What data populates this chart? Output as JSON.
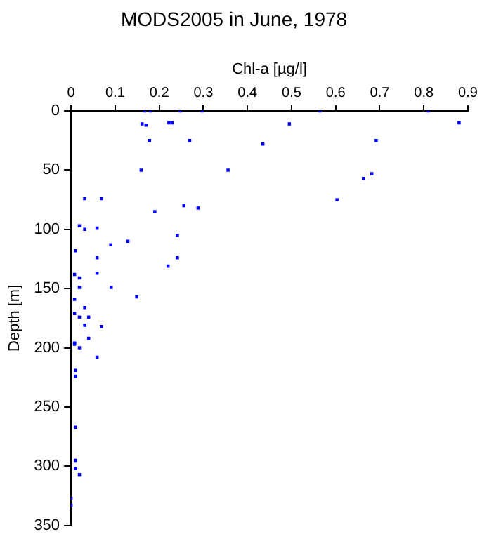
{
  "chart_data": {
    "type": "scatter",
    "title": "MODS2005 in June, 1978",
    "xlabel": "Chl-a [µg/l]",
    "ylabel": "Depth [m]",
    "xlim": [
      0,
      0.9
    ],
    "xticks": [
      0,
      0.1,
      0.2,
      0.3,
      0.4,
      0.5,
      0.6,
      0.7,
      0.8,
      0.9
    ],
    "ylim": [
      350,
      0
    ],
    "yticks": [
      0,
      50,
      100,
      150,
      200,
      250,
      300,
      350
    ],
    "grid": false,
    "legend": false,
    "marker": "square",
    "series": [
      {
        "color": "#0000ff",
        "x": [
          0.167,
          0.18,
          0.248,
          0.297,
          0.564,
          0.81,
          0.161,
          0.17,
          0.222,
          0.229,
          0.495,
          0.88,
          0.178,
          0.269,
          0.435,
          0.692,
          0.159,
          0.356,
          0.663,
          0.682,
          0.031,
          0.069,
          0.603,
          0.256,
          0.288,
          0.19,
          0.019,
          0.031,
          0.059,
          0.241,
          0.129,
          0.09,
          0.01,
          0.059,
          0.241,
          0.22,
          0.008,
          0.059,
          0.019,
          0.019,
          0.091,
          0.149,
          0.008,
          0.031,
          0.008,
          0.04,
          0.019,
          0.031,
          0.069,
          0.04,
          0.008,
          0.008,
          0.019,
          0.059,
          0.01,
          0.01,
          0.01,
          0.01,
          0.01,
          0.019,
          0,
          0
        ],
        "values": [
          0,
          0,
          0,
          0,
          0,
          0,
          11,
          12,
          10,
          10,
          11,
          10,
          25,
          25,
          28,
          25,
          50,
          50,
          57,
          53,
          74,
          74,
          75,
          80,
          82,
          85,
          97,
          100,
          99,
          105,
          110,
          113,
          118,
          124,
          124,
          131,
          138,
          137,
          141,
          149,
          149,
          157,
          159,
          166,
          171,
          174,
          174,
          181,
          182,
          192,
          196,
          197,
          200,
          208,
          219,
          224,
          267,
          295,
          302,
          307,
          327,
          333
        ]
      }
    ]
  }
}
